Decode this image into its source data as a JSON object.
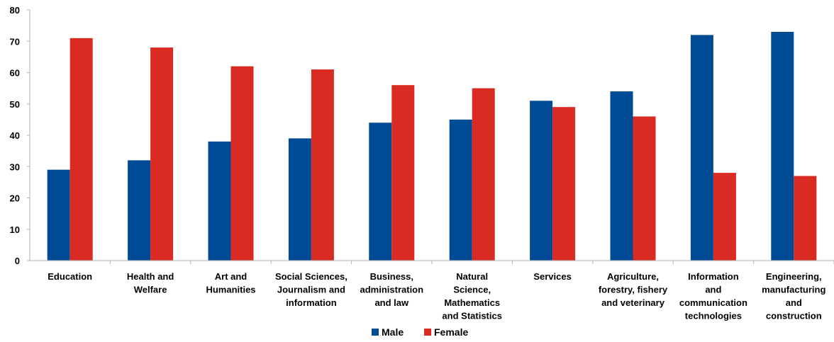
{
  "chart_data": {
    "type": "bar",
    "categories": [
      "Education",
      "Health and Welfare",
      "Art and Humanities",
      "Social Sciences, Journalism and information",
      "Business, administration and law",
      "Natural Science, Mathematics and Statistics",
      "Services",
      "Agriculture, forestry, fishery and veterinary",
      "Information and communication technologies",
      "Engineering, manufacturing and construction"
    ],
    "category_label_lines": [
      [
        "Education"
      ],
      [
        "Health and",
        "Welfare"
      ],
      [
        "Art and",
        "Humanities"
      ],
      [
        "Social Sciences,",
        "Journalism and",
        "information"
      ],
      [
        "Business,",
        "administration",
        "and law"
      ],
      [
        "Natural",
        "Science,",
        "Mathematics",
        "and Statistics"
      ],
      [
        "Services"
      ],
      [
        "Agriculture,",
        "forestry, fishery",
        "and veterinary"
      ],
      [
        "Information",
        "and",
        "communication",
        "technologies"
      ],
      [
        "Engineering,",
        "manufacturing",
        "and",
        "construction"
      ]
    ],
    "series": [
      {
        "name": "Male",
        "color": "#004b96",
        "values": [
          29,
          32,
          38,
          39,
          44,
          45,
          51,
          54,
          72,
          73
        ]
      },
      {
        "name": "Female",
        "color": "#d92b22",
        "values": [
          71,
          68,
          62,
          61,
          56,
          55,
          49,
          46,
          28,
          27
        ]
      }
    ],
    "ylim": [
      0,
      80
    ],
    "yticks": [
      0,
      10,
      20,
      30,
      40,
      50,
      60,
      70,
      80
    ],
    "title": "",
    "xlabel": "",
    "ylabel": "",
    "grid": false,
    "legend_position": "bottom-center"
  }
}
